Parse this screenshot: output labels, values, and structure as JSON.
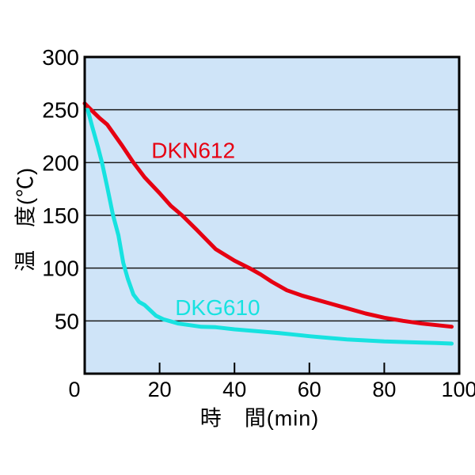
{
  "page": {
    "background": "#ffffff"
  },
  "chart_data": {
    "type": "line",
    "title": "",
    "xlabel": "時　間(min)",
    "ylabel": "温　度(℃)",
    "xlim": [
      0,
      100
    ],
    "ylim": [
      0,
      300
    ],
    "x_ticks": [
      0,
      20,
      40,
      60,
      80,
      100
    ],
    "y_ticks": [
      50,
      100,
      150,
      200,
      250,
      300
    ],
    "grid": "horizontal",
    "legend_position": "inline-labels",
    "plot_bg": "#cfe4f8",
    "border_color": "#000000",
    "grid_color": "#1a1a1a",
    "tick_color": "#000000",
    "text_color": "#000000",
    "series": [
      {
        "name": "DKN612",
        "color": "#e60012",
        "label_pos": {
          "x": 29,
          "y": 212
        },
        "points": [
          [
            0,
            256
          ],
          [
            1.7,
            250
          ],
          [
            4,
            242
          ],
          [
            6,
            236
          ],
          [
            10,
            216
          ],
          [
            13,
            200
          ],
          [
            16,
            186
          ],
          [
            20,
            171
          ],
          [
            23,
            159
          ],
          [
            26,
            150
          ],
          [
            30,
            136
          ],
          [
            35,
            118
          ],
          [
            40,
            107
          ],
          [
            44,
            100
          ],
          [
            47,
            94
          ],
          [
            50,
            87
          ],
          [
            54,
            79
          ],
          [
            58,
            74
          ],
          [
            62,
            70
          ],
          [
            66,
            66
          ],
          [
            70,
            62
          ],
          [
            75,
            57
          ],
          [
            80,
            53
          ],
          [
            85,
            50
          ],
          [
            90,
            47.5
          ],
          [
            94,
            46
          ],
          [
            98,
            44.5
          ]
        ]
      },
      {
        "name": "DKG610",
        "color": "#17e2e0",
        "label_pos": {
          "x": 35.5,
          "y": 63
        },
        "points": [
          [
            0.8,
            250
          ],
          [
            2,
            234
          ],
          [
            3.5,
            215
          ],
          [
            4.6,
            200
          ],
          [
            6,
            177
          ],
          [
            7.5,
            151
          ],
          [
            9,
            131
          ],
          [
            10.3,
            105
          ],
          [
            11.5,
            90
          ],
          [
            13,
            75
          ],
          [
            14.5,
            68
          ],
          [
            16,
            65
          ],
          [
            17.5,
            60
          ],
          [
            19,
            55
          ],
          [
            21,
            51.5
          ],
          [
            22.5,
            50
          ],
          [
            25,
            47.5
          ],
          [
            28,
            46
          ],
          [
            31,
            44.5
          ],
          [
            35,
            44
          ],
          [
            40,
            42
          ],
          [
            47,
            40
          ],
          [
            52,
            38.5
          ],
          [
            56,
            37
          ],
          [
            60,
            35.5
          ],
          [
            65,
            34
          ],
          [
            70,
            32.5
          ],
          [
            75,
            31.5
          ],
          [
            80,
            30.5
          ],
          [
            85,
            30
          ],
          [
            90,
            29.5
          ],
          [
            94,
            29
          ],
          [
            98,
            28.5
          ]
        ]
      }
    ]
  }
}
